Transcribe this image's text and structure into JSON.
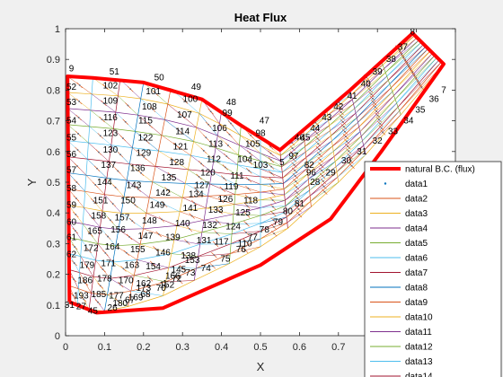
{
  "chart_data": {
    "type": "line",
    "title": "Heat Flux",
    "xlabel": "X",
    "ylabel": "Y",
    "xlim": [
      0,
      1
    ],
    "ylim": [
      0,
      1
    ],
    "xticks": [
      "0",
      "0.1",
      "0.2",
      "0.3",
      "0.4",
      "0.5",
      "0.6",
      "0.7",
      "0.8",
      "0.9",
      "1"
    ],
    "yticks": [
      "0",
      "0.1",
      "0.2",
      "0.3",
      "0.4",
      "0.5",
      "0.6",
      "0.7",
      "0.8",
      "0.9",
      "1"
    ],
    "grid": false,
    "legend_position": "bottom-right",
    "legend": [
      {
        "name": "natural B.C. (flux)",
        "color": "#ff0000",
        "style": "thick-line"
      },
      {
        "name": "data1",
        "color": "#0072bd",
        "style": "point"
      },
      {
        "name": "data2",
        "color": "#d95319",
        "style": "line"
      },
      {
        "name": "data3",
        "color": "#edb120",
        "style": "line"
      },
      {
        "name": "data4",
        "color": "#7e2f8e",
        "style": "line"
      },
      {
        "name": "data5",
        "color": "#77ac30",
        "style": "line"
      },
      {
        "name": "data6",
        "color": "#4dbeee",
        "style": "line"
      },
      {
        "name": "data7",
        "color": "#a2142f",
        "style": "line"
      },
      {
        "name": "data8",
        "color": "#0072bd",
        "style": "line"
      },
      {
        "name": "data9",
        "color": "#d95319",
        "style": "line"
      },
      {
        "name": "data10",
        "color": "#edb120",
        "style": "line"
      },
      {
        "name": "data11",
        "color": "#7e2f8e",
        "style": "line"
      },
      {
        "name": "data12",
        "color": "#77ac30",
        "style": "line"
      },
      {
        "name": "data13",
        "color": "#4dbeee",
        "style": "line"
      },
      {
        "name": "data14",
        "color": "#a2142f",
        "style": "line"
      }
    ],
    "boundary": {
      "color": "#ff0000",
      "points": [
        [
          0.01,
          0.11
        ],
        [
          0.005,
          0.845
        ],
        [
          0.07,
          0.84
        ],
        [
          0.2,
          0.825
        ],
        [
          0.35,
          0.77
        ],
        [
          0.45,
          0.685
        ],
        [
          0.55,
          0.605
        ],
        [
          0.61,
          0.67
        ],
        [
          0.73,
          0.8
        ],
        [
          0.89,
          0.985
        ],
        [
          0.97,
          0.885
        ],
        [
          0.81,
          0.6
        ],
        [
          0.68,
          0.38
        ],
        [
          0.5,
          0.23
        ],
        [
          0.25,
          0.09
        ],
        [
          0.08,
          0.075
        ],
        [
          0.01,
          0.11
        ]
      ]
    },
    "node_labels": [
      {
        "text": "9",
        "x": 0.015,
        "y": 0.87
      },
      {
        "text": "51",
        "x": 0.125,
        "y": 0.86
      },
      {
        "text": "50",
        "x": 0.24,
        "y": 0.84
      },
      {
        "text": "49",
        "x": 0.335,
        "y": 0.81
      },
      {
        "text": "48",
        "x": 0.425,
        "y": 0.76
      },
      {
        "text": "47",
        "x": 0.51,
        "y": 0.7
      },
      {
        "text": "46",
        "x": 0.6,
        "y": 0.645
      },
      {
        "text": "97",
        "x": 0.585,
        "y": 0.585
      },
      {
        "text": "96",
        "x": 0.63,
        "y": 0.53
      },
      {
        "text": "52",
        "x": 0.015,
        "y": 0.81
      },
      {
        "text": "53",
        "x": 0.015,
        "y": 0.76
      },
      {
        "text": "54",
        "x": 0.015,
        "y": 0.7
      },
      {
        "text": "55",
        "x": 0.015,
        "y": 0.645
      },
      {
        "text": "56",
        "x": 0.015,
        "y": 0.59
      },
      {
        "text": "57",
        "x": 0.015,
        "y": 0.54
      },
      {
        "text": "58",
        "x": 0.015,
        "y": 0.48
      },
      {
        "text": "59",
        "x": 0.015,
        "y": 0.425
      },
      {
        "text": "60",
        "x": 0.015,
        "y": 0.37
      },
      {
        "text": "61",
        "x": 0.015,
        "y": 0.32
      },
      {
        "text": "62",
        "x": 0.015,
        "y": 0.265
      },
      {
        "text": "102",
        "x": 0.115,
        "y": 0.815
      },
      {
        "text": "101",
        "x": 0.225,
        "y": 0.795
      },
      {
        "text": "100",
        "x": 0.32,
        "y": 0.77
      },
      {
        "text": "99",
        "x": 0.415,
        "y": 0.725
      },
      {
        "text": "98",
        "x": 0.5,
        "y": 0.66
      },
      {
        "text": "109",
        "x": 0.115,
        "y": 0.765
      },
      {
        "text": "108",
        "x": 0.215,
        "y": 0.745
      },
      {
        "text": "107",
        "x": 0.305,
        "y": 0.72
      },
      {
        "text": "106",
        "x": 0.395,
        "y": 0.675
      },
      {
        "text": "105",
        "x": 0.48,
        "y": 0.625
      },
      {
        "text": "116",
        "x": 0.115,
        "y": 0.71
      },
      {
        "text": "115",
        "x": 0.205,
        "y": 0.7
      },
      {
        "text": "114",
        "x": 0.3,
        "y": 0.665
      },
      {
        "text": "113",
        "x": 0.385,
        "y": 0.625
      },
      {
        "text": "104",
        "x": 0.46,
        "y": 0.575
      },
      {
        "text": "123",
        "x": 0.115,
        "y": 0.66
      },
      {
        "text": "122",
        "x": 0.205,
        "y": 0.645
      },
      {
        "text": "121",
        "x": 0.295,
        "y": 0.615
      },
      {
        "text": "112",
        "x": 0.38,
        "y": 0.575
      },
      {
        "text": "103",
        "x": 0.5,
        "y": 0.555
      },
      {
        "text": "130",
        "x": 0.115,
        "y": 0.605
      },
      {
        "text": "129",
        "x": 0.2,
        "y": 0.595
      },
      {
        "text": "128",
        "x": 0.285,
        "y": 0.565
      },
      {
        "text": "120",
        "x": 0.365,
        "y": 0.53
      },
      {
        "text": "111",
        "x": 0.44,
        "y": 0.52
      },
      {
        "text": "137",
        "x": 0.11,
        "y": 0.555
      },
      {
        "text": "136",
        "x": 0.185,
        "y": 0.545
      },
      {
        "text": "135",
        "x": 0.265,
        "y": 0.515
      },
      {
        "text": "127",
        "x": 0.35,
        "y": 0.49
      },
      {
        "text": "119",
        "x": 0.425,
        "y": 0.485
      },
      {
        "text": "144",
        "x": 0.1,
        "y": 0.5
      },
      {
        "text": "143",
        "x": 0.175,
        "y": 0.49
      },
      {
        "text": "142",
        "x": 0.25,
        "y": 0.465
      },
      {
        "text": "134",
        "x": 0.335,
        "y": 0.46
      },
      {
        "text": "126",
        "x": 0.41,
        "y": 0.445
      },
      {
        "text": "118",
        "x": 0.475,
        "y": 0.44
      },
      {
        "text": "151",
        "x": 0.09,
        "y": 0.44
      },
      {
        "text": "150",
        "x": 0.16,
        "y": 0.44
      },
      {
        "text": "149",
        "x": 0.235,
        "y": 0.425
      },
      {
        "text": "141",
        "x": 0.32,
        "y": 0.415
      },
      {
        "text": "133",
        "x": 0.385,
        "y": 0.41
      },
      {
        "text": "125",
        "x": 0.455,
        "y": 0.4
      },
      {
        "text": "158",
        "x": 0.085,
        "y": 0.39
      },
      {
        "text": "157",
        "x": 0.145,
        "y": 0.385
      },
      {
        "text": "148",
        "x": 0.215,
        "y": 0.375
      },
      {
        "text": "140",
        "x": 0.3,
        "y": 0.365
      },
      {
        "text": "132",
        "x": 0.37,
        "y": 0.36
      },
      {
        "text": "124",
        "x": 0.43,
        "y": 0.355
      },
      {
        "text": "165",
        "x": 0.075,
        "y": 0.34
      },
      {
        "text": "156",
        "x": 0.135,
        "y": 0.345
      },
      {
        "text": "147",
        "x": 0.205,
        "y": 0.325
      },
      {
        "text": "139",
        "x": 0.275,
        "y": 0.32
      },
      {
        "text": "131",
        "x": 0.355,
        "y": 0.31
      },
      {
        "text": "117",
        "x": 0.4,
        "y": 0.305
      },
      {
        "text": "172",
        "x": 0.065,
        "y": 0.285
      },
      {
        "text": "164",
        "x": 0.12,
        "y": 0.29
      },
      {
        "text": "155",
        "x": 0.185,
        "y": 0.28
      },
      {
        "text": "146",
        "x": 0.25,
        "y": 0.27
      },
      {
        "text": "138",
        "x": 0.315,
        "y": 0.26
      },
      {
        "text": "110",
        "x": 0.46,
        "y": 0.3
      },
      {
        "text": "179",
        "x": 0.055,
        "y": 0.23
      },
      {
        "text": "171",
        "x": 0.11,
        "y": 0.235
      },
      {
        "text": "163",
        "x": 0.17,
        "y": 0.23
      },
      {
        "text": "154",
        "x": 0.225,
        "y": 0.225
      },
      {
        "text": "145",
        "x": 0.29,
        "y": 0.215
      },
      {
        "text": "153",
        "x": 0.325,
        "y": 0.245
      },
      {
        "text": "186",
        "x": 0.05,
        "y": 0.18
      },
      {
        "text": "178",
        "x": 0.1,
        "y": 0.185
      },
      {
        "text": "170",
        "x": 0.155,
        "y": 0.18
      },
      {
        "text": "162",
        "x": 0.2,
        "y": 0.17
      },
      {
        "text": "152",
        "x": 0.26,
        "y": 0.165
      },
      {
        "text": "166",
        "x": 0.275,
        "y": 0.195
      },
      {
        "text": "193",
        "x": 0.04,
        "y": 0.13
      },
      {
        "text": "185",
        "x": 0.085,
        "y": 0.135
      },
      {
        "text": "177",
        "x": 0.13,
        "y": 0.13
      },
      {
        "text": "169",
        "x": 0.18,
        "y": 0.125
      },
      {
        "text": "173",
        "x": 0.2,
        "y": 0.155
      },
      {
        "text": "180",
        "x": 0.14,
        "y": 0.105
      },
      {
        "text": "31",
        "x": 0.01,
        "y": 0.1
      },
      {
        "text": "27",
        "x": 0.04,
        "y": 0.095
      },
      {
        "text": "45",
        "x": 0.07,
        "y": 0.08
      },
      {
        "text": "26",
        "x": 0.12,
        "y": 0.09
      },
      {
        "text": "67",
        "x": 0.165,
        "y": 0.115
      },
      {
        "text": "68",
        "x": 0.205,
        "y": 0.135
      },
      {
        "text": "70",
        "x": 0.245,
        "y": 0.155
      },
      {
        "text": "1",
        "x": 0.255,
        "y": 0.17
      },
      {
        "text": "72",
        "x": 0.285,
        "y": 0.185
      },
      {
        "text": "73",
        "x": 0.32,
        "y": 0.205
      },
      {
        "text": "74",
        "x": 0.36,
        "y": 0.22
      },
      {
        "text": "75",
        "x": 0.41,
        "y": 0.25
      },
      {
        "text": "76",
        "x": 0.45,
        "y": 0.28
      },
      {
        "text": "77",
        "x": 0.48,
        "y": 0.32
      },
      {
        "text": "78",
        "x": 0.51,
        "y": 0.345
      },
      {
        "text": "79",
        "x": 0.545,
        "y": 0.37
      },
      {
        "text": "80",
        "x": 0.57,
        "y": 0.405
      },
      {
        "text": "81",
        "x": 0.6,
        "y": 0.43
      },
      {
        "text": "5",
        "x": 0.555,
        "y": 0.565
      },
      {
        "text": "28",
        "x": 0.64,
        "y": 0.5
      },
      {
        "text": "29",
        "x": 0.68,
        "y": 0.53
      },
      {
        "text": "30",
        "x": 0.72,
        "y": 0.57
      },
      {
        "text": "31",
        "x": 0.76,
        "y": 0.6
      },
      {
        "text": "32",
        "x": 0.8,
        "y": 0.635
      },
      {
        "text": "33",
        "x": 0.84,
        "y": 0.665
      },
      {
        "text": "34",
        "x": 0.88,
        "y": 0.7
      },
      {
        "text": "35",
        "x": 0.91,
        "y": 0.735
      },
      {
        "text": "36",
        "x": 0.945,
        "y": 0.77
      },
      {
        "text": "7",
        "x": 0.97,
        "y": 0.8
      },
      {
        "text": "8",
        "x": 0.89,
        "y": 0.99
      },
      {
        "text": "37",
        "x": 0.865,
        "y": 0.94
      },
      {
        "text": "38",
        "x": 0.835,
        "y": 0.9
      },
      {
        "text": "39",
        "x": 0.8,
        "y": 0.86
      },
      {
        "text": "40",
        "x": 0.77,
        "y": 0.82
      },
      {
        "text": "41",
        "x": 0.735,
        "y": 0.78
      },
      {
        "text": "42",
        "x": 0.7,
        "y": 0.745
      },
      {
        "text": "43",
        "x": 0.67,
        "y": 0.71
      },
      {
        "text": "44",
        "x": 0.64,
        "y": 0.675
      },
      {
        "text": "45",
        "x": 0.615,
        "y": 0.645
      },
      {
        "text": "82",
        "x": 0.625,
        "y": 0.555
      }
    ]
  }
}
